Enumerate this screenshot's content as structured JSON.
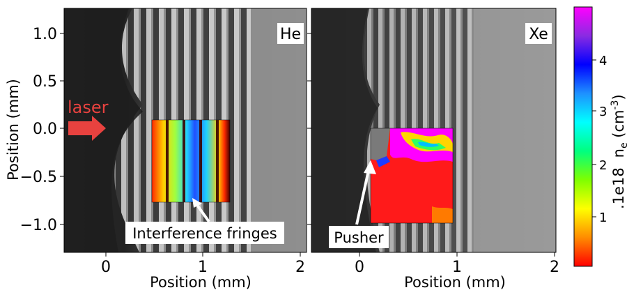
{
  "panels": [
    {
      "id": "he",
      "gas_label": "He",
      "annotation": "Interference fringes"
    },
    {
      "id": "xe",
      "gas_label": "Xe",
      "annotation": "Pusher"
    }
  ],
  "laser_label": "laser",
  "axes": {
    "xlabel": "Position (mm)",
    "ylabel": "Position (mm)",
    "x_ticks": [
      "0",
      "1",
      "2"
    ],
    "y_ticks": [
      "1.0",
      "0.5",
      "0.0",
      "−0.5",
      "−1.0"
    ]
  },
  "colorbar": {
    "ticks": [
      "4",
      "3",
      "2",
      "1"
    ],
    "label_main": "n",
    "label_sub": "e",
    "label_unit": " (cm",
    "label_exp": "-3",
    "label_close": ")",
    "multiplier": ".1e18",
    "range": [
      0,
      5
    ],
    "colors": [
      "#ff0000",
      "#ff8c00",
      "#ffff00",
      "#7fff00",
      "#00ff7f",
      "#00ffff",
      "#1e90ff",
      "#0000ff",
      "#8a2be2",
      "#ff00ff"
    ]
  },
  "colors": {
    "laser_arrow": "#e8423f",
    "laser_text": "#e8423f",
    "annotation_arrow": "#ffffff",
    "pusher_gray": "#7a7a7a"
  }
}
